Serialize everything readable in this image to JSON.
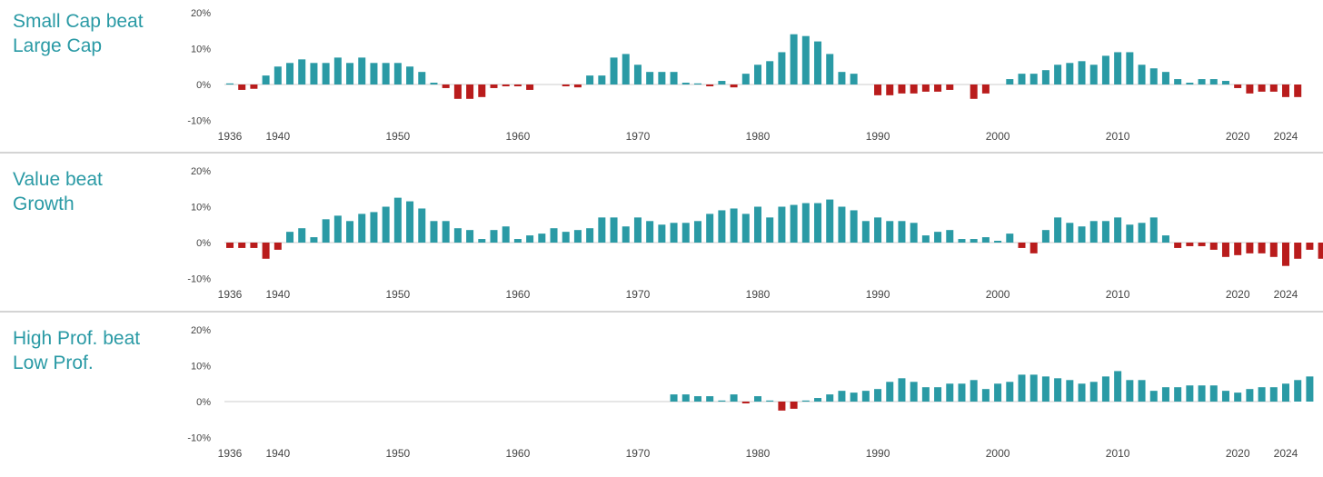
{
  "colors": {
    "positive": "#2a9aa5",
    "negative": "#b91c1c",
    "title": "#2a9aa5",
    "zero_line": "#cccccc",
    "tick_text": "#444444"
  },
  "chart_data": [
    {
      "type": "bar",
      "title_lines": [
        "Small Cap beat",
        "Large Cap"
      ],
      "ylim": [
        -10,
        20
      ],
      "yticks": [
        20,
        10,
        0,
        -10
      ],
      "ytick_labels": [
        "20%",
        "10%",
        "0%",
        "-10%"
      ],
      "x_start": 1936,
      "x_end": 2024,
      "xtick_years": [
        1936,
        1940,
        1950,
        1960,
        1970,
        1980,
        1990,
        2000,
        2010,
        2020,
        2024
      ],
      "xtick_labels": [
        "1936",
        "1940",
        "1950",
        "1960",
        "1970",
        "1980",
        "1990",
        "2000",
        "2010",
        "2020",
        "2024"
      ],
      "values": [
        0.3,
        -1.5,
        -1.2,
        2.5,
        5,
        6,
        7,
        6,
        6,
        7.5,
        6,
        7.5,
        6,
        6,
        6,
        5,
        3.5,
        0.5,
        -1,
        -4,
        -4,
        -3.5,
        -1,
        -0.5,
        -0.5,
        -1.5,
        0,
        0,
        -0.5,
        -0.8,
        2.5,
        2.5,
        7.5,
        8.5,
        5.5,
        3.5,
        3.5,
        3.5,
        0.5,
        0.3,
        -0.5,
        1,
        -0.8,
        3,
        5.5,
        6.5,
        9,
        14,
        13.5,
        12,
        8.5,
        3.5,
        3,
        0,
        -3,
        -3,
        -2.5,
        -2.5,
        -2,
        -2,
        -1.5,
        0,
        -4,
        -2.5,
        0,
        1.5,
        3,
        3,
        4,
        5.5,
        6,
        6.5,
        5.5,
        8,
        9,
        9,
        5.5,
        4.5,
        3.5,
        1.5,
        0.5,
        1.5,
        1.5,
        1,
        -1,
        -2.5,
        -2,
        -2,
        -3.5,
        -3.5
      ]
    },
    {
      "type": "bar",
      "title_lines": [
        "Value beat",
        "Growth"
      ],
      "ylim": [
        -10,
        20
      ],
      "yticks": [
        20,
        10,
        0,
        -10
      ],
      "ytick_labels": [
        "20%",
        "10%",
        "0%",
        "-10%"
      ],
      "x_start": 1936,
      "x_end": 2024,
      "xtick_years": [
        1936,
        1940,
        1950,
        1960,
        1970,
        1980,
        1990,
        2000,
        2010,
        2020,
        2024
      ],
      "xtick_labels": [
        "1936",
        "1940",
        "1950",
        "1960",
        "1970",
        "1980",
        "1990",
        "2000",
        "2010",
        "2020",
        "2024"
      ],
      "values": [
        -1.5,
        -1.5,
        -1.5,
        -4.5,
        -2,
        3,
        4,
        1.5,
        6.5,
        7.5,
        6,
        8,
        8.5,
        10,
        12.5,
        11.5,
        9.5,
        6,
        6,
        4,
        3.5,
        1,
        3.5,
        4.5,
        1,
        2,
        2.5,
        4,
        3,
        3.5,
        4,
        7,
        7,
        4.5,
        7,
        6,
        5,
        5.5,
        5.5,
        6,
        8,
        9,
        9.5,
        8,
        10,
        7,
        10,
        10.5,
        11,
        11,
        12,
        10,
        9,
        6,
        7,
        6,
        6,
        5.5,
        2,
        3,
        3.5,
        1,
        1,
        1.5,
        0.5,
        2.5,
        -1.5,
        -3,
        3.5,
        7,
        5.5,
        4.5,
        6,
        6,
        7,
        5,
        5.5,
        7,
        2,
        -1.5,
        -1,
        -1,
        -2,
        -4,
        -3.5,
        -3,
        -3,
        -4,
        -6.5,
        -4.5,
        -2,
        -4.5,
        -5
      ]
    },
    {
      "type": "bar",
      "title_lines": [
        "High Prof. beat",
        "Low Prof."
      ],
      "ylim": [
        -10,
        20
      ],
      "yticks": [
        20,
        10,
        0,
        -10
      ],
      "ytick_labels": [
        "20%",
        "10%",
        "0%",
        "-10%"
      ],
      "x_start": 1936,
      "x_end": 2024,
      "xtick_years": [
        1936,
        1940,
        1950,
        1960,
        1970,
        1980,
        1990,
        2000,
        2010,
        2020,
        2024
      ],
      "xtick_labels": [
        "1936",
        "1940",
        "1950",
        "1960",
        "1970",
        "1980",
        "1990",
        "2000",
        "2010",
        "2020",
        "2024"
      ],
      "values_start": 1973,
      "values": [
        2,
        2,
        1.5,
        1.5,
        0.3,
        2,
        -0.5,
        1.5,
        0.3,
        -2.5,
        -2,
        0.3,
        1,
        2,
        3,
        2.5,
        3,
        3.5,
        5.5,
        6.5,
        5.5,
        4,
        4,
        5,
        5,
        6,
        3.5,
        5,
        5.5,
        7.5,
        7.5,
        7,
        6.5,
        6,
        5,
        5.5,
        7,
        8.5,
        6,
        6,
        3,
        4,
        4,
        4.5,
        4.5,
        4.5,
        3,
        2.5,
        3.5,
        4,
        4,
        5,
        6,
        7
      ]
    }
  ]
}
